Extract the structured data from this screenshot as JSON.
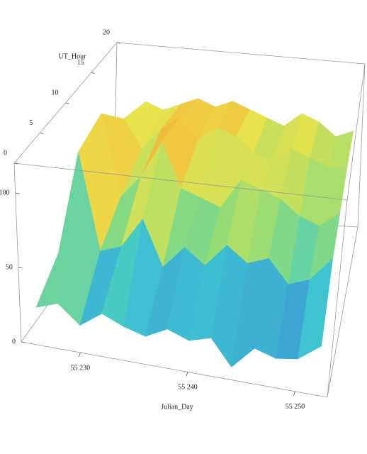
{
  "chart_data": {
    "type": "surface",
    "x_label": "Julian_Day",
    "y_label": "UT_Hour",
    "x": [
      55226,
      55228,
      55230,
      55232,
      55234,
      55236,
      55238,
      55240,
      55242,
      55244,
      55246,
      55248,
      55250,
      55252
    ],
    "y": [
      0,
      5,
      10,
      15,
      20
    ],
    "values": [
      [
        25,
        30,
        18,
        28,
        22,
        18,
        25,
        20,
        24,
        8,
        22,
        18,
        20,
        30
      ],
      [
        40,
        110,
        45,
        50,
        70,
        40,
        55,
        45,
        60,
        50,
        55,
        40,
        45,
        60
      ],
      [
        50,
        115,
        60,
        75,
        100,
        70,
        65,
        60,
        80,
        75,
        70,
        60,
        55,
        65
      ],
      [
        55,
        90,
        70,
        85,
        95,
        80,
        90,
        85,
        75,
        70,
        80,
        75,
        70,
        70
      ],
      [
        60,
        80,
        75,
        80,
        85,
        80,
        85,
        80,
        75,
        70,
        80,
        75,
        65,
        70
      ]
    ],
    "xlim": [
      55224.5,
      55253
    ],
    "xticks": [
      {
        "value": 55230,
        "label": "55 230"
      },
      {
        "value": 55240,
        "label": "55 240"
      },
      {
        "value": 55250,
        "label": "55 250"
      }
    ],
    "ylim": [
      0,
      20
    ],
    "yticks": [
      0,
      5,
      10,
      15,
      20
    ],
    "zlim": [
      0,
      120
    ],
    "zticks": [
      0,
      50,
      100
    ],
    "colorscale": [
      "#4a2aa0",
      "#3b7fd8",
      "#3fc8d0",
      "#8fdc78",
      "#eee24a",
      "#f08a2c",
      "#e0302a"
    ]
  }
}
